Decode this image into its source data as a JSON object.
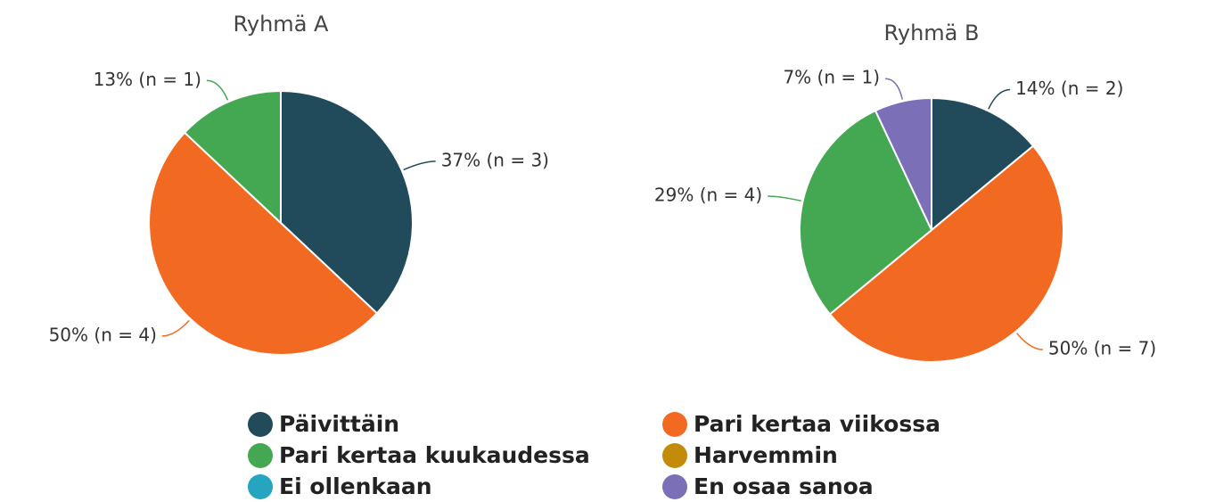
{
  "chart_data": [
    {
      "type": "pie",
      "title": "Ryhmä A",
      "categories": [
        "Päivittäin",
        "Pari kertaa viikossa",
        "Pari kertaa kuukaudessa"
      ],
      "values": [
        37,
        50,
        13
      ],
      "value_labels": [
        "37% (n = 3)",
        "50% (n = 4)",
        "13% (n = 1)"
      ],
      "colors": [
        "#214b5a",
        "#f26a22",
        "#44a853"
      ]
    },
    {
      "type": "pie",
      "title": "Ryhmä B",
      "categories": [
        "Päivittäin",
        "Pari kertaa viikossa",
        "Pari kertaa kuukaudessa",
        "En osaa sanoa"
      ],
      "values": [
        14,
        50,
        29,
        7
      ],
      "value_labels": [
        "14% (n = 2)",
        "50% (n = 7)",
        "29% (n = 4)",
        "7% (n = 1)"
      ],
      "colors": [
        "#214b5a",
        "#f26a22",
        "#44a853",
        "#7b6fb8"
      ]
    }
  ],
  "legend": {
    "items": [
      {
        "name": "Päivittäin",
        "color": "#214b5a"
      },
      {
        "name": "Pari kertaa viikossa",
        "color": "#f26a22"
      },
      {
        "name": "Pari kertaa kuukaudessa",
        "color": "#44a853"
      },
      {
        "name": "Harvemmin",
        "color": "#c48a0a"
      },
      {
        "name": "Ei ollenkaan",
        "color": "#25a5c0"
      },
      {
        "name": "En osaa sanoa",
        "color": "#7b6fb8"
      }
    ]
  }
}
